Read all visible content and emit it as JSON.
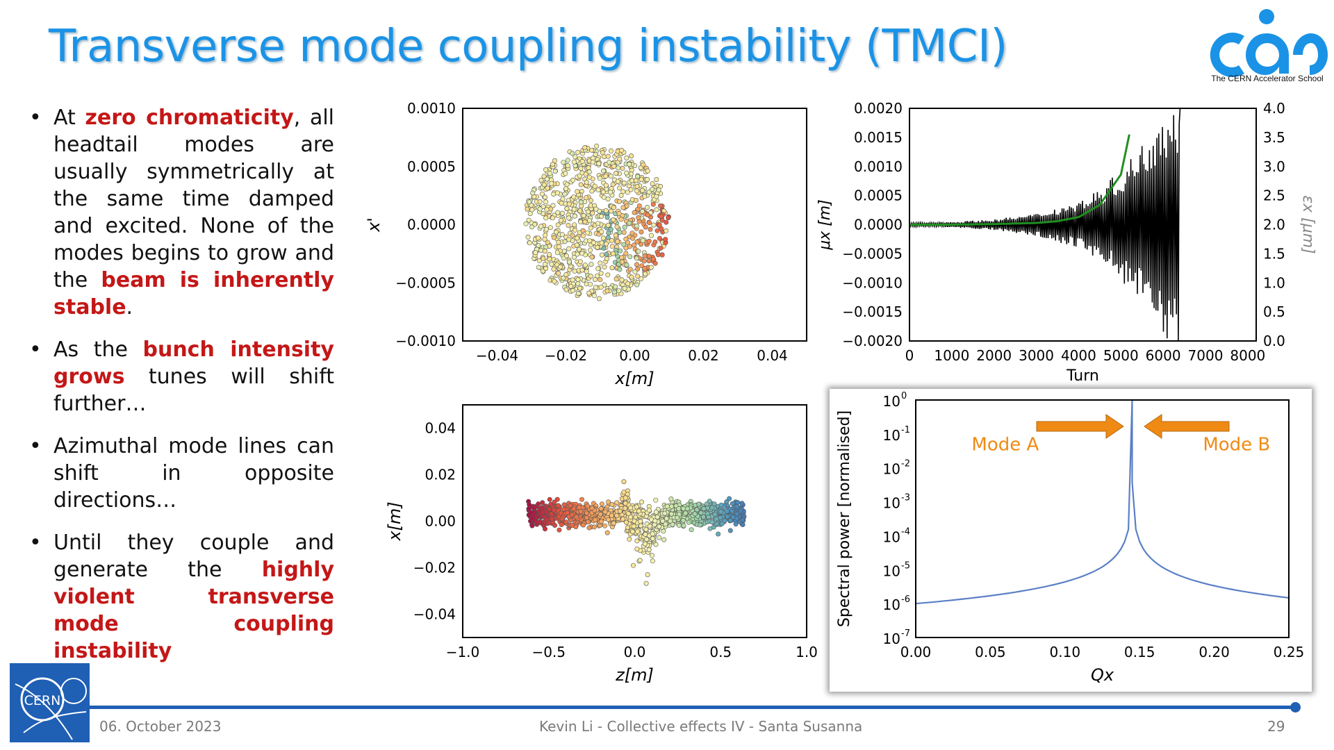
{
  "slide": {
    "title": "Transverse mode coupling instability (TMCI)",
    "logo_caption": "The CERN Accelerator School",
    "bullets": [
      {
        "parts": [
          {
            "t": "At ",
            "em": false
          },
          {
            "t": "zero chromaticity",
            "em": true
          },
          {
            "t": ", all headtail modes are usually symmetrically at the same time damped and excited. None of the modes begins to grow and the ",
            "em": false
          },
          {
            "t": "beam is inherently stable",
            "em": true
          },
          {
            "t": ".",
            "em": false
          }
        ]
      },
      {
        "parts": [
          {
            "t": "As the ",
            "em": false
          },
          {
            "t": "bunch intensity grows",
            "em": true
          },
          {
            "t": " tunes will shift further…",
            "em": false
          }
        ]
      },
      {
        "parts": [
          {
            "t": "Azimuthal mode lines can shift in opposite directions…",
            "em": false
          }
        ]
      },
      {
        "parts": [
          {
            "t": "Until they couple and generate the ",
            "em": false
          },
          {
            "t": "highly violent transverse mode coupling instability",
            "em": true
          }
        ]
      }
    ],
    "footer": {
      "date": "06. October 2023",
      "center": "Kevin Li - Collective effects IV - Santa Susanna",
      "page": "29"
    },
    "cern_logo_text": "CERN",
    "colors": {
      "title": "#1a93e6",
      "emphasis": "#c41717",
      "footer_bar": "#1f5fb4",
      "spectrum": "#5b7fc6",
      "arrow": "#ef8a14"
    }
  },
  "chart_data": [
    {
      "type": "scatter",
      "id": "phase-space",
      "xlabel": "x[m]",
      "ylabel": "x'",
      "xlim": [
        -0.05,
        0.05
      ],
      "ylim": [
        -0.001,
        0.001
      ],
      "xticks": [
        -0.04,
        -0.02,
        0.0,
        0.02,
        0.04
      ],
      "xtick_labels": [
        "−0.04",
        "−0.02",
        "0.00",
        "0.02",
        "0.04"
      ],
      "yticks": [
        0.001,
        0.0005,
        0.0,
        -0.0005,
        -0.001
      ],
      "ytick_labels": [
        "0.0010",
        "0.0005",
        "0.0000",
        "−0.0005",
        "−0.0010"
      ],
      "cloud": {
        "center": [
          -0.011,
          2e-05
        ],
        "radius": [
          0.021,
          0.00066
        ]
      }
    },
    {
      "type": "line",
      "id": "turn-by-turn",
      "xlabel": "Turn",
      "ylabel_left": "μx [m]",
      "ylabel_right": "εx [μm]",
      "xlim": [
        0,
        8200
      ],
      "ylim_left": [
        -0.002,
        0.002
      ],
      "ylim_right": [
        0.0,
        4.0
      ],
      "xticks": [
        0,
        1000,
        2000,
        3000,
        4000,
        5000,
        6000,
        7000,
        8000
      ],
      "xtick_labels": [
        "0",
        "1000",
        "2000",
        "3000",
        "4000",
        "5000",
        "6000",
        "7000",
        "8000"
      ],
      "yticks_left": [
        0.002,
        0.0015,
        0.001,
        0.0005,
        0.0,
        -0.0005,
        -0.001,
        -0.0015,
        -0.002
      ],
      "ytick_labels_left": [
        "0.0020",
        "0.0015",
        "0.0010",
        "0.0005",
        "0.0000",
        "−0.0005",
        "−0.0010",
        "−0.0015",
        "−0.0020"
      ],
      "yticks_right": [
        4.0,
        3.5,
        3.0,
        2.5,
        2.0,
        1.5,
        1.0,
        0.5,
        0.0
      ],
      "ytick_labels_right": [
        "4.0",
        "3.5",
        "3.0",
        "2.5",
        "2.0",
        "1.5",
        "1.0",
        "0.5",
        "0.0"
      ],
      "series": [
        {
          "color": "#000000",
          "envelope_turns": [
            0,
            1000,
            2000,
            3000,
            4000,
            4500,
            5000,
            5500,
            6000,
            6400
          ],
          "envelope_amp": [
            3e-05,
            5e-05,
            9e-05,
            0.00019,
            0.00041,
            0.00062,
            0.00094,
            0.0014,
            0.0021,
            0.0021
          ],
          "ends_at": 6400
        },
        {
          "color": "#1f8f1f",
          "turns": [
            0,
            1000,
            2000,
            3000,
            3500,
            4000,
            4500,
            5000,
            5200
          ],
          "values": [
            2.0,
            2.0,
            2.01,
            2.03,
            2.06,
            2.13,
            2.34,
            2.86,
            3.55
          ]
        }
      ]
    },
    {
      "type": "scatter",
      "id": "longitudinal",
      "xlabel": "z[m]",
      "ylabel": "x[m]",
      "xlim": [
        -1.0,
        1.0
      ],
      "ylim": [
        -0.05,
        0.05
      ],
      "xticks": [
        -1.0,
        -0.5,
        0.0,
        0.5,
        1.0
      ],
      "xtick_labels": [
        "−1.0",
        "−0.5",
        "0.0",
        "0.5",
        "1.0"
      ],
      "yticks": [
        0.04,
        0.02,
        0.0,
        -0.02,
        -0.04
      ],
      "ytick_labels": [
        "0.04",
        "0.02",
        "0.00",
        "−0.02",
        "−0.04"
      ],
      "cloud": {
        "z_range": [
          -0.65,
          0.72
        ],
        "x_center": 0.0
      }
    },
    {
      "type": "line",
      "id": "spectrum",
      "xlabel": "Qx",
      "ylabel": "Spectral power [normalised]",
      "xlim": [
        0.0,
        0.25
      ],
      "ylim_log10": [
        -7,
        0
      ],
      "xticks": [
        0.0,
        0.05,
        0.1,
        0.15,
        0.2,
        0.25
      ],
      "xtick_labels": [
        "0.00",
        "0.05",
        "0.10",
        "0.15",
        "0.20",
        "0.25"
      ],
      "yticks_log10": [
        0,
        -1,
        -2,
        -3,
        -4,
        -5,
        -6,
        -7
      ],
      "ytick_labels": [
        "10",
        "10",
        "10",
        "10",
        "10",
        "10",
        "10",
        "10"
      ],
      "ytick_exponents": [
        "0",
        "-1",
        "-2",
        "-3",
        "-4",
        "-5",
        "-6",
        "-7"
      ],
      "series": [
        {
          "color": "#5b7fc6",
          "peak": 0.145,
          "x": [
            0.0,
            0.05,
            0.1,
            0.13,
            0.14,
            0.145,
            0.15,
            0.16,
            0.2,
            0.25
          ],
          "log10_y": [
            -5.97,
            -5.6,
            -4.95,
            -4.0,
            -2.9,
            0.0,
            -2.9,
            -4.0,
            -5.2,
            -5.83
          ]
        }
      ],
      "annotations": [
        {
          "text": "Mode A",
          "x": 0.06,
          "log10_y": -1.3
        },
        {
          "text": "Mode B",
          "x": 0.215,
          "log10_y": -1.3
        }
      ]
    }
  ]
}
